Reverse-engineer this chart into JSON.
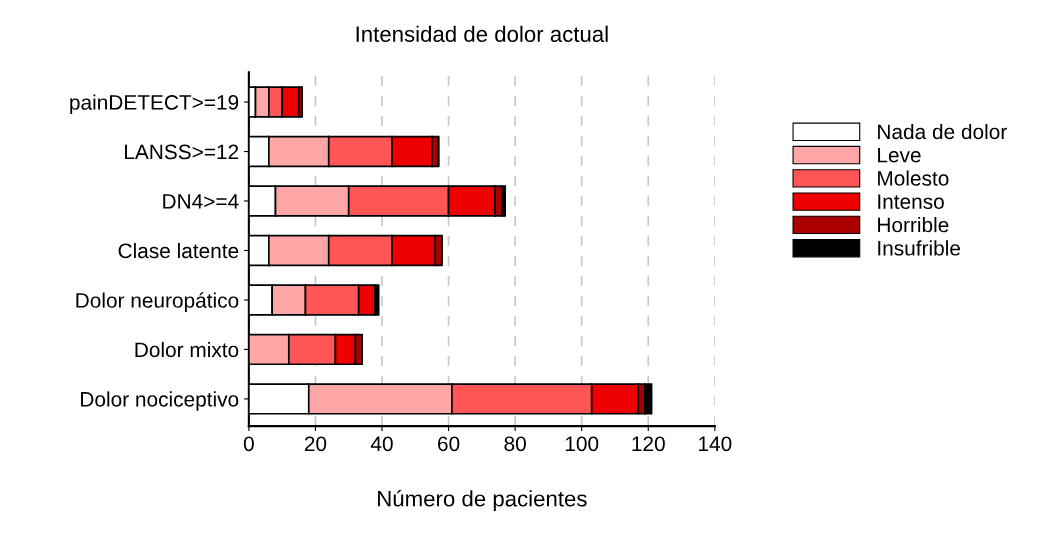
{
  "chart_data": {
    "type": "bar",
    "orientation": "horizontal",
    "stacked": true,
    "title": "Intensidad de dolor actual",
    "xlabel": "Número de pacientes",
    "categories": [
      "painDETECT>=19",
      "LANSS>=12",
      "DN4>=4",
      "Clase latente",
      "Dolor neuropático",
      "Dolor mixto",
      "Dolor nociceptivo"
    ],
    "series": [
      {
        "name": "Nada de dolor",
        "color": "#ffffff",
        "values": [
          2,
          6,
          8,
          6,
          7,
          0,
          18
        ]
      },
      {
        "name": "Leve",
        "color": "#ffa6a6",
        "values": [
          4,
          18,
          22,
          18,
          10,
          12,
          43
        ]
      },
      {
        "name": "Molesto",
        "color": "#ff5555",
        "values": [
          4,
          19,
          30,
          19,
          16,
          14,
          42
        ]
      },
      {
        "name": "Intenso",
        "color": "#ee0000",
        "values": [
          5,
          12,
          14,
          13,
          5,
          6,
          14
        ]
      },
      {
        "name": "Horrible",
        "color": "#aa0000",
        "values": [
          1,
          2,
          2,
          2,
          0,
          2,
          2
        ]
      },
      {
        "name": "Insufrible",
        "color": "#000000",
        "values": [
          0,
          0,
          1,
          0,
          1,
          0,
          2
        ]
      }
    ],
    "xlim": [
      0,
      140
    ],
    "xticks": [
      0,
      20,
      40,
      60,
      80,
      100,
      120,
      140
    ],
    "grid": "x",
    "legend": "right"
  }
}
